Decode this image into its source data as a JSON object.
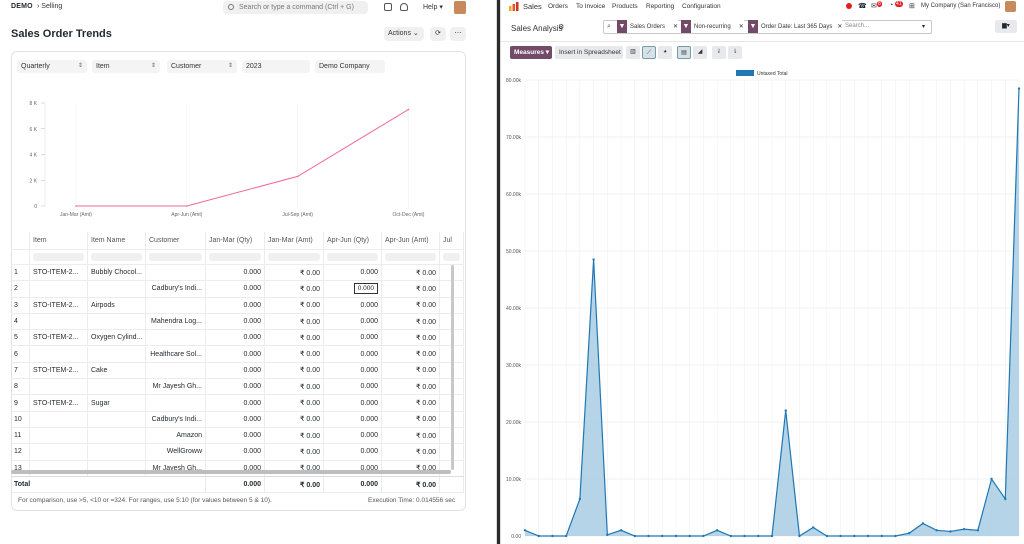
{
  "left": {
    "logo": "DEMO",
    "breadcrumb": "Selling",
    "search_placeholder": "Search or type a command (Ctrl + G)",
    "help_label": "Help",
    "page_title": "Sales Order Trends",
    "actions_label": "Actions",
    "filters": [
      "Quarterly",
      "Item",
      "Customer",
      "2023",
      "Demo Company"
    ],
    "chart_data": {
      "type": "line",
      "categories": [
        "Jan-Mar (Amt)",
        "Apr-Jun (Amt)",
        "Jul-Sep (Amt)",
        "Oct-Dec (Amt)"
      ],
      "y_ticks": [
        "8 K",
        "6 K",
        "4 K",
        "2 K",
        "0"
      ],
      "ylim": [
        0,
        8000
      ],
      "values": [
        0,
        0,
        2300,
        7500
      ],
      "color": "#f0679a"
    },
    "table": {
      "columns": [
        "Item",
        "Item Name",
        "Customer",
        "Jan-Mar (Qty)",
        "Jan-Mar (Amt)",
        "Apr-Jun (Qty)",
        "Apr-Jun (Amt)",
        "Jul"
      ],
      "rows": [
        [
          "1",
          "STO-ITEM-2...",
          "Bubbly Chocol...",
          "",
          "0.000",
          "₹ 0.00",
          "0.000",
          "₹ 0.00"
        ],
        [
          "2",
          "",
          "",
          "Cadbury's Indi...",
          "0.000",
          "₹ 0.00",
          "0.000",
          "₹ 0.00"
        ],
        [
          "3",
          "STO-ITEM-2...",
          "Airpods",
          "",
          "0.000",
          "₹ 0.00",
          "0.000",
          "₹ 0.00"
        ],
        [
          "4",
          "",
          "",
          "Mahendra Log...",
          "0.000",
          "₹ 0.00",
          "0.000",
          "₹ 0.00"
        ],
        [
          "5",
          "STO-ITEM-2...",
          "Oxygen Cylind...",
          "",
          "0.000",
          "₹ 0.00",
          "0.000",
          "₹ 0.00"
        ],
        [
          "6",
          "",
          "",
          "Healthcare Sol...",
          "0.000",
          "₹ 0.00",
          "0.000",
          "₹ 0.00"
        ],
        [
          "7",
          "STO-ITEM-2...",
          "Cake",
          "",
          "0.000",
          "₹ 0.00",
          "0.000",
          "₹ 0.00"
        ],
        [
          "8",
          "",
          "",
          "Mr Jayesh Gh...",
          "0.000",
          "₹ 0.00",
          "0.000",
          "₹ 0.00"
        ],
        [
          "9",
          "STO-ITEM-2...",
          "Sugar",
          "",
          "0.000",
          "₹ 0.00",
          "0.000",
          "₹ 0.00"
        ],
        [
          "10",
          "",
          "",
          "Cadbury's Indi...",
          "0.000",
          "₹ 0.00",
          "0.000",
          "₹ 0.00"
        ],
        [
          "11",
          "",
          "",
          "Amazon",
          "0.000",
          "₹ 0.00",
          "0.000",
          "₹ 0.00"
        ],
        [
          "12",
          "",
          "",
          "WellGroww",
          "0.000",
          "₹ 0.00",
          "0.000",
          "₹ 0.00"
        ],
        [
          "13",
          "",
          "",
          "Mr Jayesh Gh...",
          "0.000",
          "₹ 0.00",
          "0.000",
          "₹ 0.00"
        ]
      ],
      "editing_value": "0.000",
      "total_label": "Total",
      "total_values": [
        "0.000",
        "₹ 0.00",
        "0.000",
        "₹ 0.00"
      ]
    },
    "footer_hint": "For comparison, use >5, <10 or =324. For ranges, use 5:10 (for values between 5 & 10).",
    "execution_time": "Execution Time: 0.014556 sec"
  },
  "right": {
    "app_name": "Sales",
    "menu": [
      "Orders",
      "To Invoice",
      "Products",
      "Reporting",
      "Configuration"
    ],
    "badges": [
      "8",
      "41"
    ],
    "company": "My Company (San Francisco)",
    "page_title": "Sales Analysis",
    "facets": [
      "Sales Orders",
      "Non-recurring",
      "Order Date: Last 365 Days"
    ],
    "search_placeholder": "Search...",
    "measures_label": "Measures",
    "spreadsheet_label": "Insert in Spreadsheet",
    "chart_data": {
      "type": "area",
      "legend": "Untaxed Total",
      "y_ticks": [
        "80.00k",
        "70.00k",
        "60.00k",
        "50.00k",
        "40.00k",
        "30.00k",
        "20.00k",
        "10.00k",
        "0.00"
      ],
      "ylim": [
        0,
        80000
      ],
      "values": [
        1000,
        0,
        0,
        0,
        6500,
        48500,
        200,
        1000,
        0,
        0,
        0,
        0,
        0,
        0,
        1000,
        0,
        0,
        0,
        0,
        22000,
        0,
        1500,
        0,
        0,
        0,
        0,
        0,
        0,
        500,
        2200,
        1000,
        800,
        1200,
        1000,
        10000,
        6500,
        78500
      ],
      "color": "#1f77b4",
      "fill": "#a9cce3"
    }
  }
}
